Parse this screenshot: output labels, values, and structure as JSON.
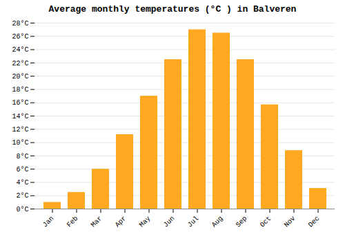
{
  "chart_data": {
    "type": "bar",
    "title": "Average monthly temperatures (°C ) in Balveren",
    "categories": [
      "Jan",
      "Feb",
      "Mar",
      "Apr",
      "May",
      "Jun",
      "Jul",
      "Aug",
      "Sep",
      "Oct",
      "Nov",
      "Dec"
    ],
    "values": [
      1.0,
      2.5,
      6.0,
      11.2,
      17.0,
      22.5,
      27.0,
      26.5,
      22.5,
      15.7,
      8.8,
      3.1
    ],
    "color": "#FFA820",
    "ylim": [
      0,
      28
    ],
    "yticks": [
      {
        "value": 0,
        "label": "0°C"
      },
      {
        "value": 2,
        "label": "2°C"
      },
      {
        "value": 4,
        "label": "4°C"
      },
      {
        "value": 6,
        "label": "6°C"
      },
      {
        "value": 8,
        "label": "8°C"
      },
      {
        "value": 10,
        "label": "10°C"
      },
      {
        "value": 12,
        "label": "12°C"
      },
      {
        "value": 14,
        "label": "14°C"
      },
      {
        "value": 16,
        "label": "16°C"
      },
      {
        "value": 18,
        "label": "18°C"
      },
      {
        "value": 20,
        "label": "20°C"
      },
      {
        "value": 22,
        "label": "22°C"
      },
      {
        "value": 24,
        "label": "24°C"
      },
      {
        "value": 26,
        "label": "26°C"
      },
      {
        "value": 28,
        "label": "28°C"
      }
    ],
    "grid": true
  }
}
